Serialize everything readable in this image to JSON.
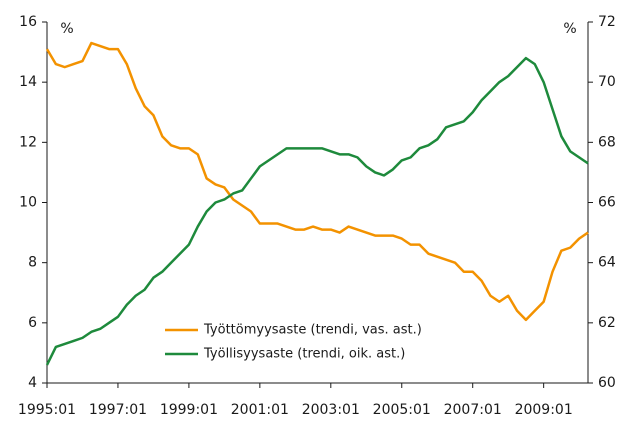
{
  "chart_data": {
    "type": "line",
    "ylabel": "%",
    "y2label": "%",
    "x": [
      1995,
      1995.25,
      1995.5,
      1995.75,
      1996,
      1996.25,
      1996.5,
      1996.75,
      1997,
      1997.25,
      1997.5,
      1997.75,
      1998,
      1998.25,
      1998.5,
      1998.75,
      1999,
      1999.25,
      1999.5,
      1999.75,
      2000,
      2000.25,
      2000.5,
      2000.75,
      2001,
      2001.25,
      2001.5,
      2001.75,
      2002,
      2002.25,
      2002.5,
      2002.75,
      2003,
      2003.25,
      2003.5,
      2003.75,
      2004,
      2004.25,
      2004.5,
      2004.75,
      2005,
      2005.25,
      2005.5,
      2005.75,
      2006,
      2006.25,
      2006.5,
      2006.75,
      2007,
      2007.25,
      2007.5,
      2007.75,
      2008,
      2008.25,
      2008.5,
      2008.75,
      2009,
      2009.25,
      2009.5,
      2009.75,
      2010,
      2010.25
    ],
    "xlim": [
      1995,
      2010.25
    ],
    "xticks": [
      {
        "value": 1995,
        "label": "1995:01"
      },
      {
        "value": 1997,
        "label": "1997:01"
      },
      {
        "value": 1999,
        "label": "1999:01"
      },
      {
        "value": 2001,
        "label": "2001:01"
      },
      {
        "value": 2003,
        "label": "2003:01"
      },
      {
        "value": 2005,
        "label": "2005:01"
      },
      {
        "value": 2007,
        "label": "2007:01"
      },
      {
        "value": 2009,
        "label": "2009:01"
      }
    ],
    "ylim": [
      4,
      16
    ],
    "yticks": [
      4,
      6,
      8,
      10,
      12,
      14,
      16
    ],
    "y2lim": [
      60,
      72
    ],
    "y2ticks": [
      60,
      62,
      64,
      66,
      68,
      70,
      72
    ],
    "series": [
      {
        "name": "Työttömyysaste (trendi, vas. ast.)",
        "color": "#f39200",
        "values": [
          15.1,
          14.6,
          14.5,
          14.6,
          14.7,
          15.3,
          15.2,
          15.1,
          15.1,
          14.6,
          13.8,
          13.2,
          12.9,
          12.2,
          11.9,
          11.8,
          11.8,
          11.6,
          10.8,
          10.6,
          10.5,
          10.1,
          9.9,
          9.7,
          9.3,
          9.3,
          9.3,
          9.2,
          9.1,
          9.1,
          9.2,
          9.1,
          9.1,
          9.0,
          9.2,
          9.1,
          9.0,
          8.9,
          8.9,
          8.9,
          8.8,
          8.6,
          8.6,
          8.3,
          8.2,
          8.1,
          8.0,
          7.7,
          7.7,
          7.4,
          6.9,
          6.7,
          6.9,
          6.4,
          6.1,
          6.4,
          6.7,
          7.7,
          8.4,
          8.5,
          8.8,
          9.0
        ]
      },
      {
        "name": "Työllisyysaste (trendi, oik. ast.)",
        "color": "#1e8a3c",
        "axis": "y2",
        "values": [
          60.6,
          61.2,
          61.3,
          61.4,
          61.5,
          61.7,
          61.8,
          62.0,
          62.2,
          62.6,
          62.9,
          63.1,
          63.5,
          63.7,
          64.0,
          64.3,
          64.6,
          65.2,
          65.7,
          66.0,
          66.1,
          66.3,
          66.4,
          66.8,
          67.2,
          67.4,
          67.6,
          67.8,
          67.8,
          67.8,
          67.8,
          67.8,
          67.7,
          67.6,
          67.6,
          67.5,
          67.2,
          67.0,
          66.9,
          67.1,
          67.4,
          67.5,
          67.8,
          67.9,
          68.1,
          68.5,
          68.6,
          68.7,
          69.0,
          69.4,
          69.7,
          70.0,
          70.2,
          70.5,
          70.8,
          70.6,
          70.0,
          69.1,
          68.2,
          67.7,
          67.5,
          67.3
        ]
      }
    ]
  }
}
